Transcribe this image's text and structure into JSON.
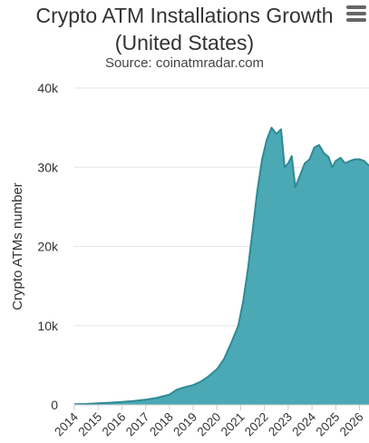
{
  "chart_data": {
    "type": "area",
    "title": "Crypto ATM Installations Growth (United States)",
    "title_lines": [
      "Crypto ATM Installations Growth",
      "(United States)"
    ],
    "subtitle": "Source: coinatmradar.com",
    "xlabel": "",
    "ylabel": "Crypto ATMs number",
    "x_tick_labels": [
      "2014",
      "2015",
      "2016",
      "2017",
      "2018",
      "2019",
      "2020",
      "2021",
      "2022",
      "2023",
      "2024",
      "2025",
      "2026"
    ],
    "xlim": [
      2014,
      2026.4
    ],
    "ylim": [
      0,
      40000
    ],
    "y_ticks": [
      0,
      10000,
      20000,
      30000,
      40000
    ],
    "y_tick_labels": [
      "0",
      "10k",
      "20k",
      "30k",
      "40k"
    ],
    "grid": true,
    "color": "#4aa9b4",
    "line_color": "#2f8a95",
    "x": [
      2014.0,
      2014.5,
      2015.0,
      2015.5,
      2016.0,
      2016.5,
      2017.0,
      2017.5,
      2018.0,
      2018.3,
      2018.6,
      2019.0,
      2019.3,
      2019.6,
      2020.0,
      2020.3,
      2020.6,
      2020.9,
      2021.1,
      2021.3,
      2021.5,
      2021.7,
      2021.9,
      2022.1,
      2022.3,
      2022.5,
      2022.7,
      2022.85,
      2023.0,
      2023.15,
      2023.3,
      2023.5,
      2023.7,
      2023.9,
      2024.1,
      2024.3,
      2024.5,
      2024.7,
      2024.85,
      2025.0,
      2025.2,
      2025.4,
      2025.6,
      2025.8,
      2026.0,
      2026.2,
      2026.4
    ],
    "values": [
      80,
      120,
      200,
      280,
      380,
      480,
      650,
      900,
      1300,
      1900,
      2200,
      2500,
      2900,
      3500,
      4500,
      5800,
      7800,
      10000,
      13000,
      17000,
      22000,
      27000,
      31000,
      33500,
      35000,
      34200,
      34800,
      30000,
      30500,
      31400,
      27500,
      29000,
      30500,
      31000,
      32500,
      32800,
      31800,
      31300,
      30000,
      30800,
      31200,
      30500,
      30800,
      31000,
      31000,
      30800,
      30200
    ]
  }
}
